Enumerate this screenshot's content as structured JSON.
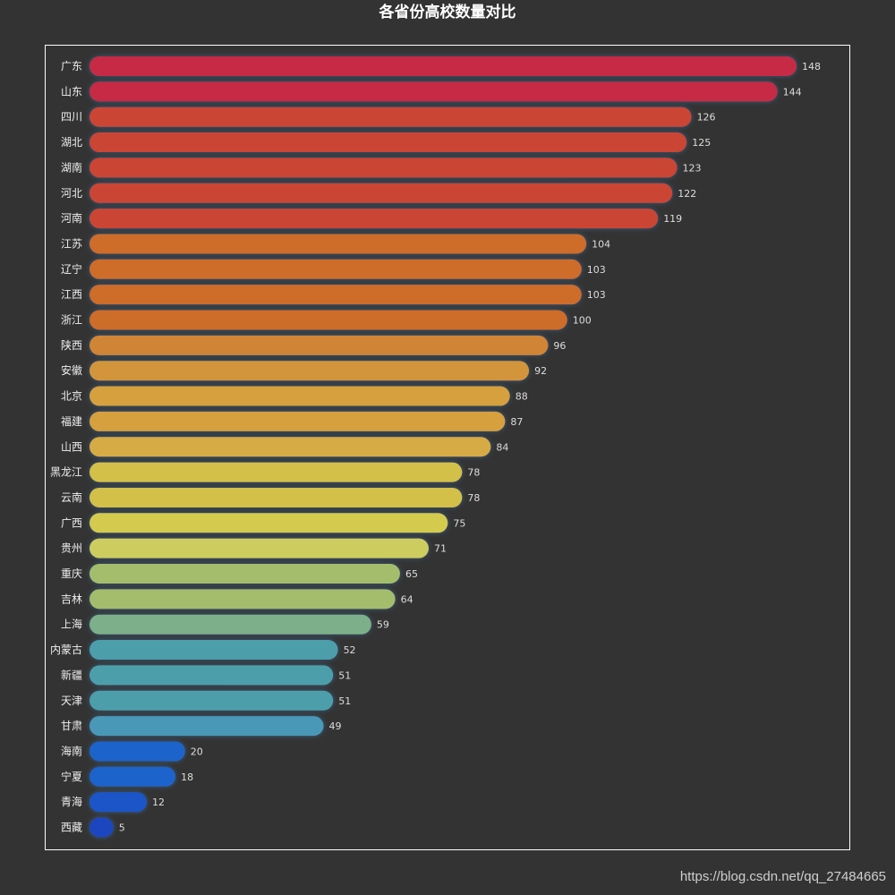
{
  "chart_data": {
    "type": "bar",
    "orientation": "horizontal",
    "title": "各省份高校数量对比",
    "xlabel": "",
    "ylabel": "",
    "xlim": [
      0,
      160
    ],
    "grid": false,
    "categories": [
      "广东",
      "山东",
      "四川",
      "湖北",
      "湖南",
      "河北",
      "河南",
      "江苏",
      "辽宁",
      "江西",
      "浙江",
      "陕西",
      "安徽",
      "北京",
      "福建",
      "山西",
      "黑龙江",
      "云南",
      "广西",
      "贵州",
      "重庆",
      "吉林",
      "上海",
      "内蒙古",
      "新疆",
      "天津",
      "甘肃",
      "海南",
      "宁夏",
      "青海",
      "西藏"
    ],
    "values": [
      148,
      144,
      126,
      125,
      123,
      122,
      119,
      104,
      103,
      103,
      100,
      96,
      92,
      88,
      87,
      84,
      78,
      78,
      75,
      71,
      65,
      64,
      59,
      52,
      51,
      51,
      49,
      20,
      18,
      12,
      5
    ],
    "colors": [
      "#c62c44",
      "#c62c44",
      "#cb4434",
      "#cb4434",
      "#cb4434",
      "#cb4434",
      "#cb4434",
      "#ce6c2c",
      "#ce6c2c",
      "#ce6c2c",
      "#ce6c2c",
      "#d08434",
      "#d2953a",
      "#d5a03e",
      "#d5a03e",
      "#d6aa44",
      "#d3c04a",
      "#d3c04a",
      "#d4ca4e",
      "#cdcc5e",
      "#a3bd6d",
      "#a3bd6d",
      "#7daf8a",
      "#4d9eab",
      "#4d9eab",
      "#4d9eab",
      "#4898b8",
      "#1a63cc",
      "#1a63cc",
      "#1a55c8",
      "#1a45c0"
    ]
  },
  "watermark": "https://blog.csdn.net/qq_27484665"
}
